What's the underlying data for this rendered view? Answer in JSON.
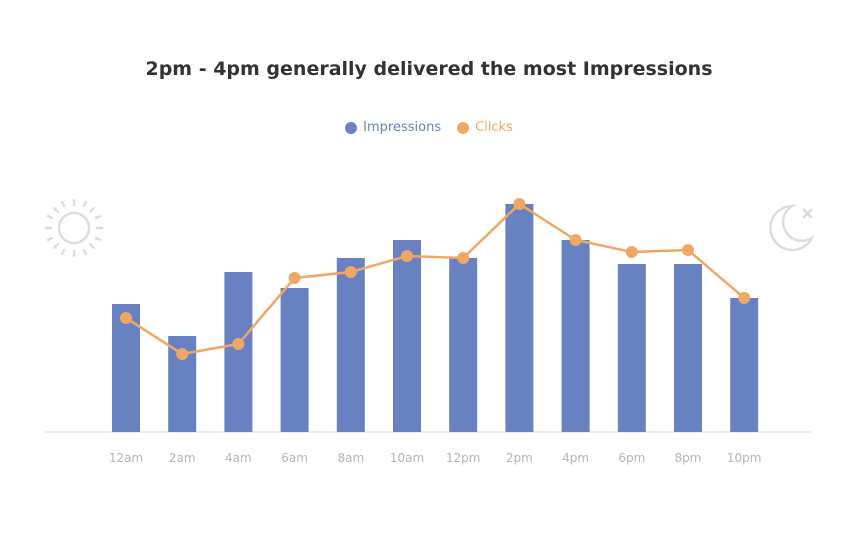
{
  "title": "2pm - 4pm generally delivered the most Impressions",
  "legend": [
    {
      "label": "Impressions",
      "color": "#6882c1"
    },
    {
      "label": "Clicks",
      "color": "#f0a766"
    }
  ],
  "icons": {
    "left": "sun-icon",
    "right": "moon-icon"
  },
  "colors": {
    "bar": "#6882c1",
    "line": "#f0a766",
    "axis": "#e6e6e6",
    "icon": "#dddddd"
  },
  "chart_data": {
    "type": "bar",
    "title": "2pm - 4pm generally delivered the most Impressions",
    "categories": [
      "12am",
      "2am",
      "4am",
      "6am",
      "8am",
      "10am",
      "12pm",
      "2pm",
      "4pm",
      "6pm",
      "8pm",
      "10pm"
    ],
    "series": [
      {
        "name": "Impressions",
        "type": "bar",
        "values": [
          128,
          96,
          160,
          144,
          174,
          192,
          174,
          228,
          192,
          168,
          168,
          134
        ]
      },
      {
        "name": "Clicks",
        "type": "line",
        "values": [
          114,
          78,
          88,
          154,
          160,
          176,
          174,
          228,
          192,
          180,
          182,
          134
        ]
      }
    ],
    "ylim": [
      0,
      240
    ],
    "grid": false,
    "legend_position": "top-center"
  }
}
